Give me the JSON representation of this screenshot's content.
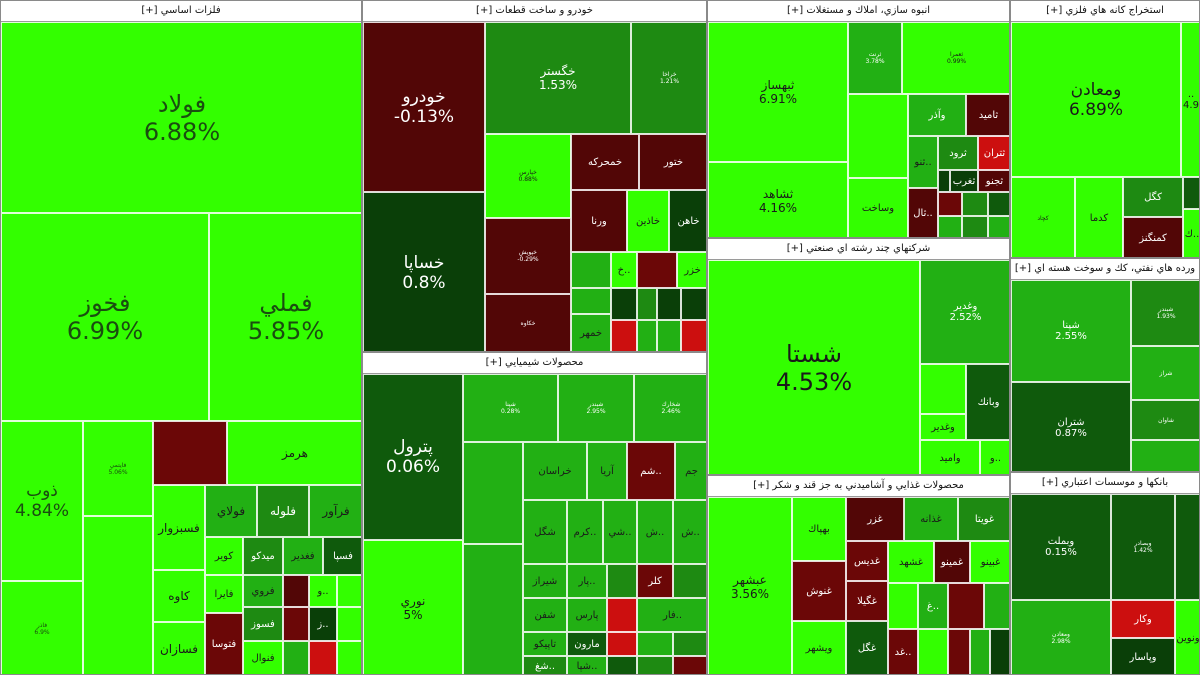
{
  "colors": {
    "bright_green": "#33ff00",
    "mid_green": "#22b014",
    "green": "#1e8a12",
    "dark_green": "#0f5a0c",
    "deep_green": "#0a3f08",
    "dark_red": "#6b0707",
    "maroon": "#520606",
    "red": "#cc0f0f"
  },
  "sectors": {
    "basic_metals": {
      "title": "فلزات اساسي [+]",
      "cells": {
        "foolad": {
          "name": "فولاد",
          "pct": "6.88%"
        },
        "fakhooz": {
          "name": "فخوز",
          "pct": "6.99%"
        },
        "fameli": {
          "name": "فملي",
          "pct": "5.85%"
        },
        "zob": {
          "name": "ذوب",
          "pct": "4.84%"
        },
        "small_pct_a": {
          "name": "فايتمي",
          "pct": "5.06%"
        },
        "small_pct_b": {
          "name": "فاذر",
          "pct": "6.9%"
        },
        "hormoz": {
          "name": "هرمز"
        },
        "farvar": {
          "name": "فرآور"
        },
        "faloole": {
          "name": "فلوله"
        },
        "fooladi": {
          "name": "فولاي"
        },
        "fasbzvar": {
          "name": "فسبزوار"
        },
        "kave": {
          "name": "کاوه"
        },
        "fasazan": {
          "name": "فسازان"
        },
        "fasa": {
          "name": "فسپا"
        },
        "faghadir": {
          "name": "فغدير"
        },
        "midko": {
          "name": "ميدكو"
        },
        "kavir": {
          "name": "كوير"
        },
        "fabira": {
          "name": "فايرا"
        },
        "faroo": {
          "name": "فروي"
        },
        "fasoz": {
          "name": "فسوز"
        },
        "fatoosa": {
          "name": "فتوسا"
        },
        "fanval": {
          "name": "فنوال"
        },
        "foo": {
          "name": "..و"
        },
        "foz": {
          "name": "..ز"
        }
      }
    },
    "auto": {
      "title": "خودرو و ساخت قطعات [+]",
      "cells": {
        "khodro": {
          "name": "خودرو",
          "pct": "-0.13%"
        },
        "khasapa": {
          "name": "خساپا",
          "pct": "0.8%"
        },
        "khegostar": {
          "name": "خگستر",
          "pct": "1.53%"
        },
        "kharakha": {
          "name": "خراخا",
          "pct": "1.21%"
        },
        "khamhreke": {
          "name": "خمحركه"
        },
        "khatoor": {
          "name": "ختور"
        },
        "varna": {
          "name": "ورنا"
        },
        "khazin": {
          "name": "خاذين"
        },
        "khahan": {
          "name": "خاهن"
        },
        "khemhar": {
          "name": "خمهر"
        },
        "khazar": {
          "name": "خزر"
        },
        "small_a": {
          "name": "خپارس",
          "pct": "0.88%"
        },
        "small_b": {
          "name": "خپويش",
          "pct": "-0.29%"
        },
        "small_c": {
          "name": "خكاوه"
        },
        "kha": {
          "name": "..خ"
        }
      }
    },
    "chemical": {
      "title": "محصولات شيميايي [+]",
      "cells": {
        "petrol": {
          "name": "پترول",
          "pct": "0.06%"
        },
        "noori": {
          "name": "نوري",
          "pct": "5%"
        },
        "khorasan": {
          "name": "خراسان"
        },
        "arya": {
          "name": "آريا"
        },
        "shem": {
          "name": "..شم"
        },
        "jam": {
          "name": "جم"
        },
        "shegol": {
          "name": "شگل"
        },
        "shiraz": {
          "name": "شيراز"
        },
        "shafan": {
          "name": "شفن"
        },
        "tapiko": {
          "name": "تاپيكو"
        },
        "maroon": {
          "name": "مارون"
        },
        "krm": {
          "name": "..كرم"
        },
        "shi": {
          "name": "..شي"
        },
        "sh": {
          "name": "..ش"
        },
        "klar": {
          "name": "كلر"
        },
        "pars": {
          "name": "پارس"
        },
        "par": {
          "name": "..پار"
        },
        "sh2": {
          "name": "..ش"
        },
        "far": {
          "name": "..فار"
        },
        "shg": {
          "name": "..شغ"
        },
        "sha": {
          "name": "..شپا"
        },
        "sm1": {
          "name": "شپنا",
          "pct": "0.28%"
        },
        "sm2": {
          "name": "شبندر",
          "pct": "2.95%"
        },
        "sm3": {
          "name": "شخارك",
          "pct": "2.46%"
        }
      }
    },
    "construction": {
      "title": "انبوه سازي، املاك و مستغلات [+]",
      "cells": {
        "theysaz": {
          "name": "ثبهساز",
          "pct": "6.91%"
        },
        "shahed": {
          "name": "ثشاهد",
          "pct": "4.16%"
        },
        "vasakht": {
          "name": "وساخت"
        },
        "vazar": {
          "name": "وآذر"
        },
        "tamid": {
          "name": "ثاميد"
        },
        "tehran": {
          "name": "ثتران"
        },
        "tarvod": {
          "name": "ثرود"
        },
        "tejno": {
          "name": "ثجنو"
        },
        "tano": {
          "name": "..ثنو"
        },
        "tal": {
          "name": "..ثال"
        },
        "sm1": {
          "name": "ثرنت",
          "pct": "3.78%"
        },
        "sm2": {
          "name": "ثعمرا",
          "pct": "0.99%"
        },
        "sm3": {
          "name": "ثغرب"
        }
      }
    },
    "multi": {
      "title": "شركتهاي چند رشته اي صنعتي [+]",
      "cells": {
        "shasta": {
          "name": "شستا",
          "pct": "4.53%"
        },
        "vghadir_big": {
          "name": "وغدير",
          "pct": "2.52%"
        },
        "vabank": {
          "name": "وبانك"
        },
        "vghadir": {
          "name": "وغدير"
        },
        "vamid": {
          "name": "واميد"
        },
        "vo": {
          "name": "..و"
        }
      }
    },
    "food": {
      "title": "محصولات غذايي و آشاميدني به جز قند و شكر [+]",
      "cells": {
        "abshahr": {
          "name": "عبشهر",
          "pct": "3.56%"
        },
        "ghanoosh": {
          "name": "غنوش"
        },
        "behnak": {
          "name": "بهپاك"
        },
        "vishahr": {
          "name": "ويشهر"
        },
        "ghazar": {
          "name": "غزر"
        },
        "ghaddis": {
          "name": "غديس"
        },
        "ghegela": {
          "name": "غگيلا"
        },
        "ghegol": {
          "name": "غگل"
        },
        "ghazane": {
          "name": "غذانه"
        },
        "ghoyta": {
          "name": "غويتا"
        },
        "ghshahd": {
          "name": "غشهد"
        },
        "ghamino": {
          "name": "غمينو"
        },
        "ghbino": {
          "name": "غبينو"
        },
        "ghd": {
          "name": "..غد"
        },
        "ghg": {
          "name": "..غ"
        }
      }
    },
    "mining": {
      "title": "استخراج كانه هاي فلزي [+]",
      "cells": {
        "vmaaden": {
          "name": "ومعادن",
          "pct": "6.89%"
        },
        "kegol": {
          "name": "كگل"
        },
        "kamengez": {
          "name": "كمنگنز"
        },
        "kadma": {
          "name": "كدما"
        },
        "right_pct": {
          "name": "..",
          "pct": "4.9"
        },
        "sm1": {
          "name": "كچاد"
        },
        "ka": {
          "name": "..ك"
        }
      }
    },
    "oil": {
      "title": "ورده هاي نفتي، كك و سوخت هسته اي [+]",
      "cells": {
        "shpna": {
          "name": "شپنا",
          "pct": "2.55%"
        },
        "shtran": {
          "name": "شتران",
          "pct": "0.87%"
        },
        "sm1": {
          "name": "شبندر",
          "pct": "1.93%"
        },
        "sm2": {
          "name": "شراز"
        },
        "sm3": {
          "name": "شاوان"
        }
      }
    },
    "banks": {
      "title": "بانكها و موسسات اعتباري [+]",
      "cells": {
        "vbmellat": {
          "name": "وبملت",
          "pct": "0.15%"
        },
        "vmelal": {
          "name": "ومعادن",
          "pct": "2.98%"
        },
        "vkar": {
          "name": "وكار"
        },
        "vpasar": {
          "name": "وپاسار"
        },
        "vbsader": {
          "name": "وبصادر",
          "pct": "1.42%"
        },
        "vnovin": {
          "name": "ونوين"
        }
      }
    }
  }
}
